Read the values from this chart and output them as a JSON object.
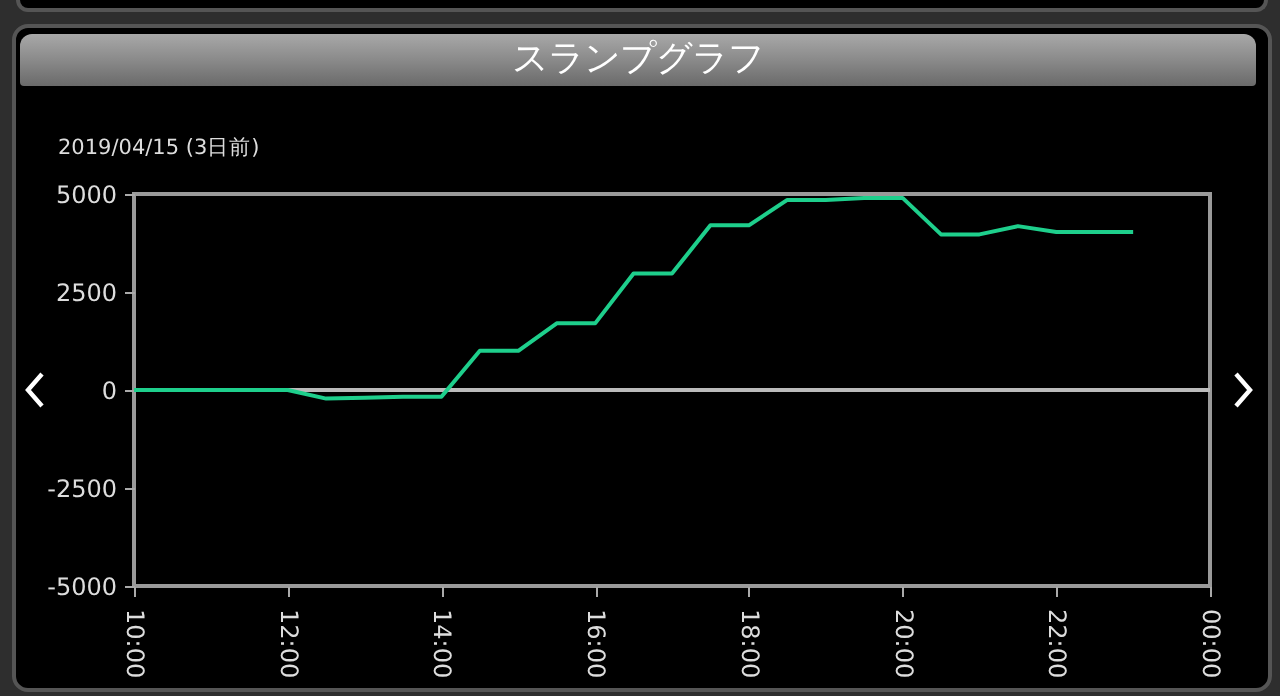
{
  "chart_data": {
    "type": "line",
    "title": "スランプグラフ",
    "subtitle": "2019/04/15 (3日前)",
    "x": [
      10,
      12,
      12.5,
      13,
      13.5,
      14,
      14.5,
      15,
      15.5,
      16,
      16.5,
      17,
      17.5,
      18,
      18.5,
      19,
      19.5,
      20,
      20.5,
      21,
      21.5,
      22,
      22.5,
      23
    ],
    "series": [
      {
        "color": "#1ecf8c",
        "values": [
          0,
          0,
          -220,
          -200,
          -170,
          -170,
          1000,
          1000,
          1700,
          1700,
          2970,
          2970,
          4200,
          4200,
          4850,
          4850,
          4900,
          4900,
          3970,
          3970,
          4180,
          4030,
          4030,
          4030
        ]
      }
    ],
    "xlim": [
      10,
      24
    ],
    "xticks": [
      {
        "value": 10,
        "label": "10:00"
      },
      {
        "value": 12,
        "label": "12:00"
      },
      {
        "value": 14,
        "label": "14:00"
      },
      {
        "value": 16,
        "label": "16:00"
      },
      {
        "value": 18,
        "label": "18:00"
      },
      {
        "value": 20,
        "label": "20:00"
      },
      {
        "value": 22,
        "label": "22:00"
      },
      {
        "value": 24,
        "label": "00:00"
      }
    ],
    "ylim": [
      -5000,
      5000
    ],
    "yticks": [
      -5000,
      -2500,
      0,
      2500,
      5000
    ],
    "ref_lines": [
      {
        "axis": "y",
        "value": 0,
        "color": "#bbbbbb"
      }
    ]
  }
}
